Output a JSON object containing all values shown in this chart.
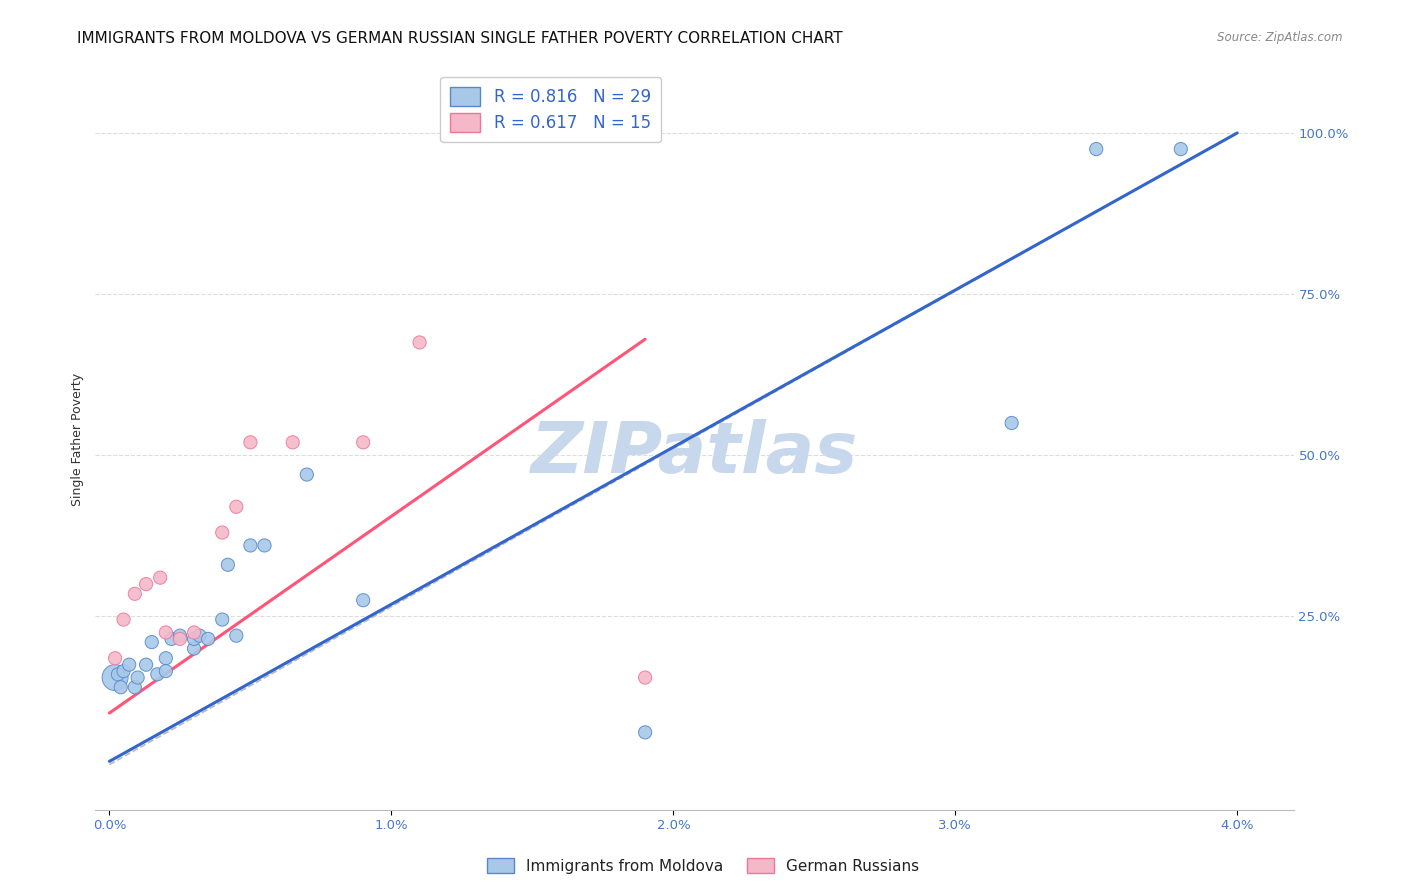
{
  "title": "IMMIGRANTS FROM MOLDOVA VS GERMAN RUSSIAN SINGLE FATHER POVERTY CORRELATION CHART",
  "source": "Source: ZipAtlas.com",
  "ylabel": "Single Father Poverty",
  "x_ticks": [
    0.0,
    0.01,
    0.02,
    0.03,
    0.04
  ],
  "x_tick_labels": [
    "0.0%",
    "1.0%",
    "2.0%",
    "3.0%",
    "4.0%"
  ],
  "y_ticks_right": [
    0.0,
    0.25,
    0.5,
    0.75,
    1.0
  ],
  "y_tick_labels_right": [
    "",
    "25.0%",
    "50.0%",
    "75.0%",
    "100.0%"
  ],
  "xlim": [
    -0.0005,
    0.042
  ],
  "ylim": [
    -0.05,
    1.1
  ],
  "blue_r": 0.816,
  "blue_n": 29,
  "pink_r": 0.617,
  "pink_n": 15,
  "blue_color": "#A8C8E8",
  "pink_color": "#F4B8C8",
  "blue_edge_color": "#5588CC",
  "pink_edge_color": "#EE7799",
  "blue_line_color": "#3366CC",
  "pink_line_color": "#FF5577",
  "dashed_line_color": "#BBBBBB",
  "watermark": "ZIPatlas",
  "watermark_color": "#C8D8EC",
  "legend_label_blue": "Immigrants from Moldova",
  "legend_label_pink": "German Russians",
  "blue_scatter_x": [
    0.0002,
    0.0003,
    0.0004,
    0.0005,
    0.0007,
    0.0009,
    0.001,
    0.0013,
    0.0015,
    0.0017,
    0.002,
    0.002,
    0.0022,
    0.0025,
    0.003,
    0.003,
    0.0032,
    0.0035,
    0.004,
    0.0042,
    0.0045,
    0.005,
    0.0055,
    0.007,
    0.009,
    0.019,
    0.032,
    0.035,
    0.038
  ],
  "blue_scatter_y": [
    0.155,
    0.16,
    0.14,
    0.165,
    0.175,
    0.14,
    0.155,
    0.175,
    0.21,
    0.16,
    0.185,
    0.165,
    0.215,
    0.22,
    0.2,
    0.215,
    0.22,
    0.215,
    0.245,
    0.33,
    0.22,
    0.36,
    0.36,
    0.47,
    0.275,
    0.07,
    0.55,
    0.975,
    0.975
  ],
  "blue_scatter_sizes": [
    350,
    90,
    90,
    90,
    90,
    90,
    90,
    90,
    90,
    90,
    90,
    90,
    90,
    90,
    90,
    90,
    90,
    90,
    90,
    90,
    90,
    90,
    90,
    90,
    90,
    90,
    90,
    90,
    90
  ],
  "pink_scatter_x": [
    0.0002,
    0.0005,
    0.0009,
    0.0013,
    0.0018,
    0.002,
    0.0025,
    0.003,
    0.004,
    0.0045,
    0.005,
    0.0065,
    0.009,
    0.011,
    0.019
  ],
  "pink_scatter_y": [
    0.185,
    0.245,
    0.285,
    0.3,
    0.31,
    0.225,
    0.215,
    0.225,
    0.38,
    0.42,
    0.52,
    0.52,
    0.52,
    0.675,
    0.155
  ],
  "pink_scatter_sizes": [
    90,
    90,
    90,
    90,
    90,
    90,
    90,
    90,
    90,
    90,
    90,
    90,
    90,
    90,
    90
  ],
  "blue_line_x": [
    0.0,
    0.04
  ],
  "blue_line_y": [
    0.025,
    1.0
  ],
  "pink_line_x": [
    0.0,
    0.019
  ],
  "pink_line_y": [
    0.1,
    0.68
  ],
  "dashed_line_x": [
    0.0,
    0.04
  ],
  "dashed_line_y": [
    0.02,
    1.0
  ],
  "grid_color": "#DDDDDD",
  "title_fontsize": 11,
  "axis_fontsize": 9,
  "tick_fontsize": 9.5,
  "right_tick_color": "#4477CC"
}
